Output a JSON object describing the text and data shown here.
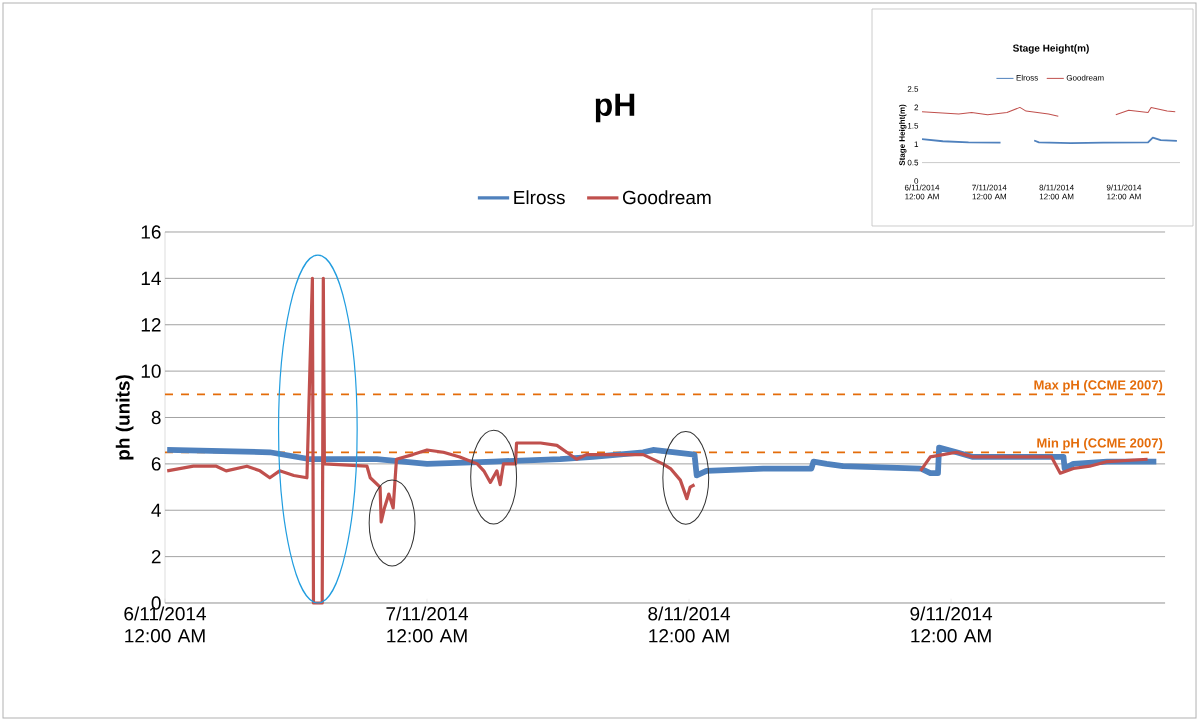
{
  "chart_data": [
    {
      "type": "line",
      "title": "pH",
      "ylabel": "ph (units)",
      "xlim": [
        "2014-11-06T00:00",
        "2014-11-09T19:36"
      ],
      "ylim": [
        0,
        16
      ],
      "xticks": [
        {
          "value": "2014-11-06T00:00",
          "label": "6/11/2014 12:00 AM"
        },
        {
          "value": "2014-11-07T00:00",
          "label": "7/11/2014 12:00 AM"
        },
        {
          "value": "2014-11-08T00:00",
          "label": "8/11/2014 12:00 AM"
        },
        {
          "value": "2014-11-09T00:00",
          "label": "9/11/2014 12:00 AM"
        }
      ],
      "yticks": [
        0,
        2,
        4,
        6,
        8,
        10,
        12,
        14,
        16
      ],
      "grid": "y",
      "legend": "top",
      "marker": "none",
      "line_style": "solid",
      "series": [
        {
          "name": "Elross",
          "color": "#4f81bd",
          "x": [
            "2014-11-06T00:12",
            "2014-11-06T09:36",
            "2014-11-06T13:18",
            "2014-11-06T19:24",
            "2014-11-07T00:00",
            "2014-11-07T06:06",
            "2014-11-07T12:12",
            "2014-11-07T15:12",
            "2014-11-07T19:48",
            "2014-11-07T20:42",
            "2014-11-08T00:30",
            "2014-11-08T00:42",
            "2014-11-08T01:36",
            "2014-11-08T06:48",
            "2014-11-08T11:12",
            "2014-11-08T11:24",
            "2014-11-08T12:36",
            "2014-11-08T14:06",
            "2014-11-08T21:12",
            "2014-11-08T22:06",
            "2014-11-08T22:48",
            "2014-11-08T22:54",
            "2014-11-09T00:30",
            "2014-11-09T02:00",
            "2014-11-09T10:18",
            "2014-11-09T10:24",
            "2014-11-09T11:12",
            "2014-11-09T14:18",
            "2014-11-09T18:48"
          ],
          "values": [
            6.6,
            6.5,
            6.2,
            6.2,
            6.0,
            6.1,
            6.2,
            6.3,
            6.5,
            6.6,
            6.4,
            5.5,
            5.7,
            5.8,
            5.8,
            6.1,
            6.0,
            5.9,
            5.8,
            5.6,
            5.6,
            6.7,
            6.5,
            6.3,
            6.3,
            5.8,
            6.0,
            6.1,
            6.1
          ]
        },
        {
          "name": "Goodream",
          "color": "#c0504d",
          "x": [
            "2014-11-06T00:12",
            "2014-11-06T02:36",
            "2014-11-06T04:42",
            "2014-11-06T05:36",
            "2014-11-06T07:30",
            "2014-11-06T08:42",
            "2014-11-06T09:36",
            "2014-11-06T10:30",
            "2014-11-06T11:48",
            "2014-11-06T13:00",
            "2014-11-06T13:30",
            "2014-11-06T13:36",
            "2014-11-06T14:24",
            "2014-11-06T14:30",
            "2014-11-06T14:36",
            "2014-11-06T18:30",
            "2014-11-06T18:48",
            "2014-11-06T19:42",
            "2014-11-06T19:48",
            "2014-11-06T20:06",
            "2014-11-06T20:30",
            "2014-11-06T20:54",
            "2014-11-06T21:12",
            "2014-11-06T22:42",
            "2014-11-07T00:00",
            "2014-11-07T01:30",
            "2014-11-07T03:00",
            "2014-11-07T04:36",
            "2014-11-07T05:12",
            "2014-11-07T05:48",
            "2014-11-07T06:24",
            "2014-11-07T06:42",
            "2014-11-07T07:00",
            "2014-11-07T08:06",
            "2014-11-07T08:12",
            "2014-11-07T10:24",
            "2014-11-07T11:54",
            "2014-11-07T12:48",
            "2014-11-07T13:42",
            "2014-11-07T14:36",
            "2014-11-07T19:48",
            "2014-11-07T21:36",
            "2014-11-07T22:18",
            "2014-11-07T23:12",
            "2014-11-07T23:48",
            "2014-11-08T00:06",
            "2014-11-08T00:30",
            "2014-11-08T10:00",
            "2014-11-08T21:12",
            "2014-11-08T22:06",
            "2014-11-09T00:30",
            "2014-11-09T02:00",
            "2014-11-09T09:12",
            "2014-11-09T10:00",
            "2014-11-09T11:12",
            "2014-11-09T12:42",
            "2014-11-09T14:18",
            "2014-11-09T18:00"
          ],
          "values": [
            5.7,
            5.9,
            5.9,
            5.7,
            5.9,
            5.7,
            5.4,
            5.7,
            5.5,
            5.4,
            14,
            0,
            0,
            14,
            6.0,
            5.9,
            5.4,
            5.0,
            3.5,
            4.1,
            4.7,
            4.1,
            6.2,
            6.4,
            6.6,
            6.5,
            6.3,
            6.0,
            5.7,
            5.2,
            5.7,
            5.1,
            6.0,
            6.0,
            6.9,
            6.9,
            6.8,
            6.5,
            6.2,
            6.4,
            6.4,
            6.0,
            5.8,
            5.3,
            4.5,
            5.0,
            5.1,
            null,
            5.7,
            6.3,
            6.5,
            6.3,
            6.3,
            5.6,
            5.8,
            5.9,
            6.1,
            6.2
          ]
        }
      ],
      "ref_lines": [
        {
          "axis": "y",
          "value": 9,
          "label": "Max pH (CCME 2007)",
          "color": "#e46c0a",
          "line_style": "dashed"
        },
        {
          "axis": "y",
          "value": 6.5,
          "label": "Min pH (CCME 2007)",
          "color": "#e46c0a",
          "line_style": "dashed"
        }
      ]
    },
    {
      "type": "line",
      "title": "Stage Height(m)",
      "ylabel": "Stage Height(m)",
      "xlim": [
        "2014-11-06T00:00",
        "2014-11-09T20:00"
      ],
      "ylim": [
        0,
        2.5
      ],
      "xticks": [
        {
          "value": "2014-11-06T00:00",
          "label": "6/11/2014 12:00 AM"
        },
        {
          "value": "2014-11-07T00:00",
          "label": "7/11/2014 12:00 AM"
        },
        {
          "value": "2014-11-08T00:00",
          "label": "8/11/2014 12:00 AM"
        },
        {
          "value": "2014-11-09T00:00",
          "label": "9/11/2014 12:00 AM"
        }
      ],
      "yticks": [
        0,
        0.5,
        1,
        1.5,
        2,
        2.5
      ],
      "legend": "top",
      "marker": "none",
      "line_style": "solid",
      "series": [
        {
          "name": "Elross",
          "color": "#4f81bd",
          "x": [
            "2014-11-06T00:00",
            "2014-11-06T07:24",
            "2014-11-06T16:36",
            "2014-11-07T04:00",
            "2014-11-07T10:00",
            "2014-11-07T16:00",
            "2014-11-07T17:42",
            "2014-11-08T05:06",
            "2014-11-08T16:36",
            "2014-11-09T08:36",
            "2014-11-09T10:18",
            "2014-11-09T13:06",
            "2014-11-09T18:54"
          ],
          "values": [
            1.14,
            1.08,
            1.05,
            1.04,
            null,
            1.1,
            1.05,
            1.03,
            1.04,
            1.05,
            1.18,
            1.11,
            1.09
          ]
        },
        {
          "name": "Goodream",
          "color": "#c0504d",
          "x": [
            "2014-11-06T00:00",
            "2014-11-06T13:06",
            "2014-11-06T17:42",
            "2014-11-06T23:24",
            "2014-11-07T06:18",
            "2014-11-07T10:54",
            "2014-11-07T13:06",
            "2014-11-07T21:06",
            "2014-11-08T00:36",
            "2014-11-08T12:00",
            "2014-11-08T21:06",
            "2014-11-09T01:42",
            "2014-11-09T08:36",
            "2014-11-09T09:42",
            "2014-11-09T15:24",
            "2014-11-09T18:18"
          ],
          "values": [
            1.88,
            1.82,
            1.86,
            1.8,
            1.86,
            2.0,
            1.9,
            1.82,
            1.76,
            null,
            1.8,
            1.92,
            1.86,
            2.0,
            1.9,
            1.88
          ]
        }
      ],
      "ref_lines": [
        {
          "axis": "y",
          "value": 0.5,
          "color": "#969696"
        }
      ]
    }
  ]
}
